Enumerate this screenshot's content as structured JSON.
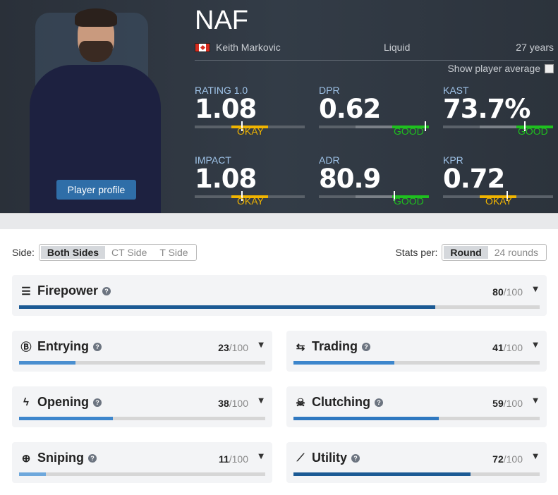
{
  "player": {
    "nickname": "NAF",
    "real_name": "Keith Markovic",
    "country_flag": "canada-flag",
    "team": "Liquid",
    "age": "27 years",
    "profile_button": "Player profile",
    "show_average_label": "Show player average",
    "show_average_checked": false
  },
  "stats": [
    {
      "label": "RATING 1.0",
      "value": "1.08",
      "rating": "OKAY",
      "segment": 1,
      "marker": 0.42,
      "color": "#f0b400"
    },
    {
      "label": "DPR",
      "value": "0.62",
      "rating": "GOOD",
      "segment": 2,
      "marker": 0.96,
      "color": "#1fbf1f"
    },
    {
      "label": "KAST",
      "value": "73.7%",
      "rating": "GOOD",
      "segment": 2,
      "marker": 0.74,
      "color": "#1fbf1f"
    },
    {
      "label": "IMPACT",
      "value": "1.08",
      "rating": "OKAY",
      "segment": 1,
      "marker": 0.42,
      "color": "#f0b400"
    },
    {
      "label": "ADR",
      "value": "80.9",
      "rating": "GOOD",
      "segment": 2,
      "marker": 0.68,
      "color": "#1fbf1f"
    },
    {
      "label": "KPR",
      "value": "0.72",
      "rating": "OKAY",
      "segment": 1,
      "marker": 0.58,
      "color": "#f0b400"
    }
  ],
  "filters": {
    "side_label": "Side:",
    "side_options": [
      "Both Sides",
      "CT Side",
      "T Side"
    ],
    "side_selected": "Both Sides",
    "per_label": "Stats per:",
    "per_options": [
      "Round",
      "24 rounds"
    ],
    "per_selected": "Round"
  },
  "categories": [
    {
      "name": "Firepower",
      "icon": "firepower-icon",
      "score": "80",
      "max": "/100",
      "value": 80,
      "color": "#1b5a94"
    },
    {
      "name": "Entrying",
      "icon": "entrying-icon",
      "score": "23",
      "max": "/100",
      "value": 23,
      "color": "#4a8fd0"
    },
    {
      "name": "Trading",
      "icon": "trading-icon",
      "score": "41",
      "max": "/100",
      "value": 41,
      "color": "#3d86cc"
    },
    {
      "name": "Opening",
      "icon": "opening-icon",
      "score": "38",
      "max": "/100",
      "value": 38,
      "color": "#3d86cc"
    },
    {
      "name": "Clutching",
      "icon": "clutching-icon",
      "score": "59",
      "max": "/100",
      "value": 59,
      "color": "#2f78c0"
    },
    {
      "name": "Sniping",
      "icon": "sniping-icon",
      "score": "11",
      "max": "/100",
      "value": 11,
      "color": "#6ea8dc"
    },
    {
      "name": "Utility",
      "icon": "utility-icon",
      "score": "72",
      "max": "/100",
      "value": 72,
      "color": "#1b5a94"
    }
  ]
}
